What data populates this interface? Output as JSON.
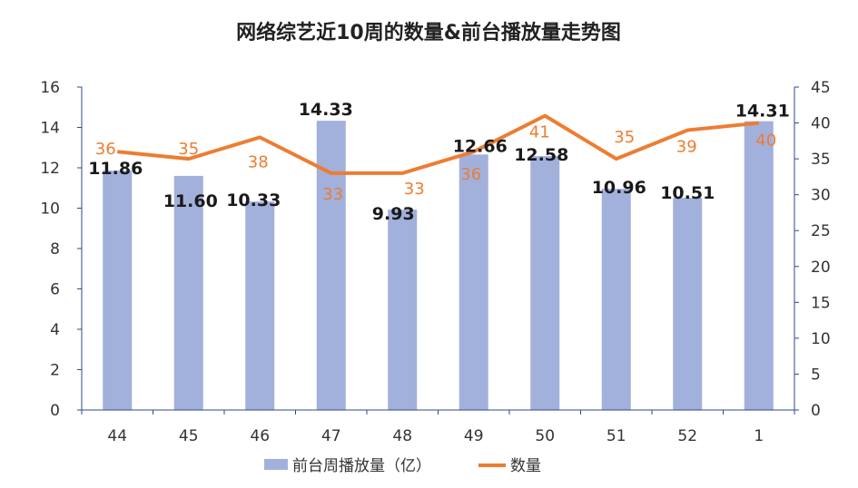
{
  "chart_data": {
    "type": "bar+line",
    "title": "网络综艺近10周的数量&前台播放量走势图",
    "categories": [
      "44",
      "45",
      "46",
      "47",
      "48",
      "49",
      "50",
      "51",
      "52",
      "1"
    ],
    "series": [
      {
        "name": "前台周播放量（亿）",
        "type": "bar",
        "axis": "left",
        "color": "#A2B0DC",
        "values": [
          11.86,
          11.6,
          10.33,
          14.33,
          9.93,
          12.66,
          12.58,
          10.96,
          10.51,
          14.31
        ],
        "labels": [
          "11.86",
          "11.60",
          "10.33",
          "14.33",
          "9.93",
          "12.66",
          "12.58",
          "10.96",
          "10.51",
          "14.31"
        ]
      },
      {
        "name": "数量",
        "type": "line",
        "axis": "right",
        "color": "#ED7D31",
        "values": [
          36,
          35,
          38,
          33,
          33,
          36,
          41,
          35,
          39,
          40
        ],
        "labels": [
          "36",
          "35",
          "38",
          "33",
          "33",
          "36",
          "41",
          "35",
          "39",
          "40"
        ]
      }
    ],
    "y_left": {
      "range": [
        0,
        16
      ],
      "ticks": [
        "0",
        "2",
        "4",
        "6",
        "8",
        "10",
        "12",
        "14",
        "16"
      ]
    },
    "y_right": {
      "range": [
        0,
        45
      ],
      "ticks": [
        "0",
        "5",
        "10",
        "15",
        "20",
        "25",
        "30",
        "35",
        "40",
        "45"
      ]
    },
    "grid": false,
    "legend": "bottom"
  }
}
